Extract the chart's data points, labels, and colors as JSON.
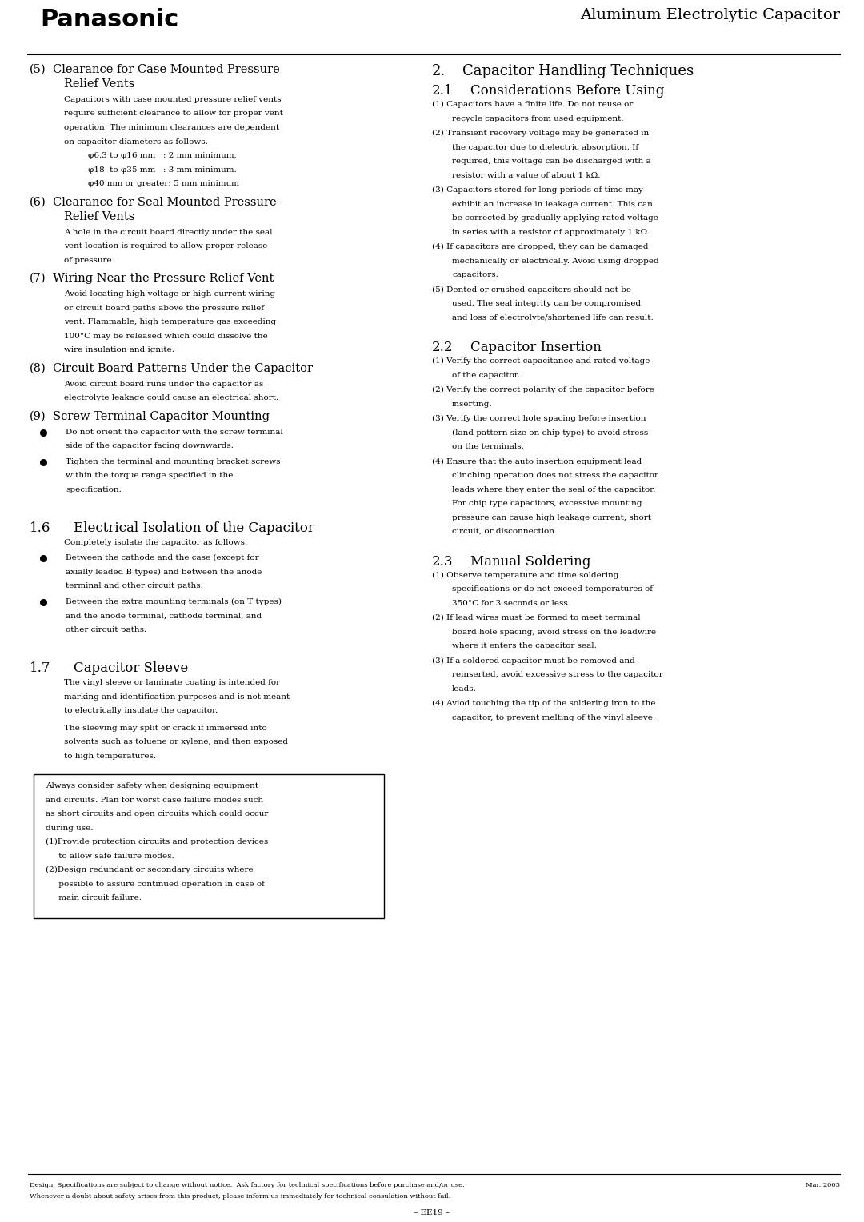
{
  "bg_color": "#ffffff",
  "page_width": 10.8,
  "page_height": 15.28,
  "panasonic_text": "Panasonic",
  "header_right_text": "Aluminum Electrolytic Capacitor",
  "footer_text1": "Design, Specifications are subject to change without notice.  Ask factory for technical specifications before purchase and/or use.",
  "footer_text2": "Whenever a doubt about safety arises from this product, please inform us immediately for technical consulation without fail.",
  "footer_date": "Mar. 2005",
  "footer_page": "– EE19 –"
}
